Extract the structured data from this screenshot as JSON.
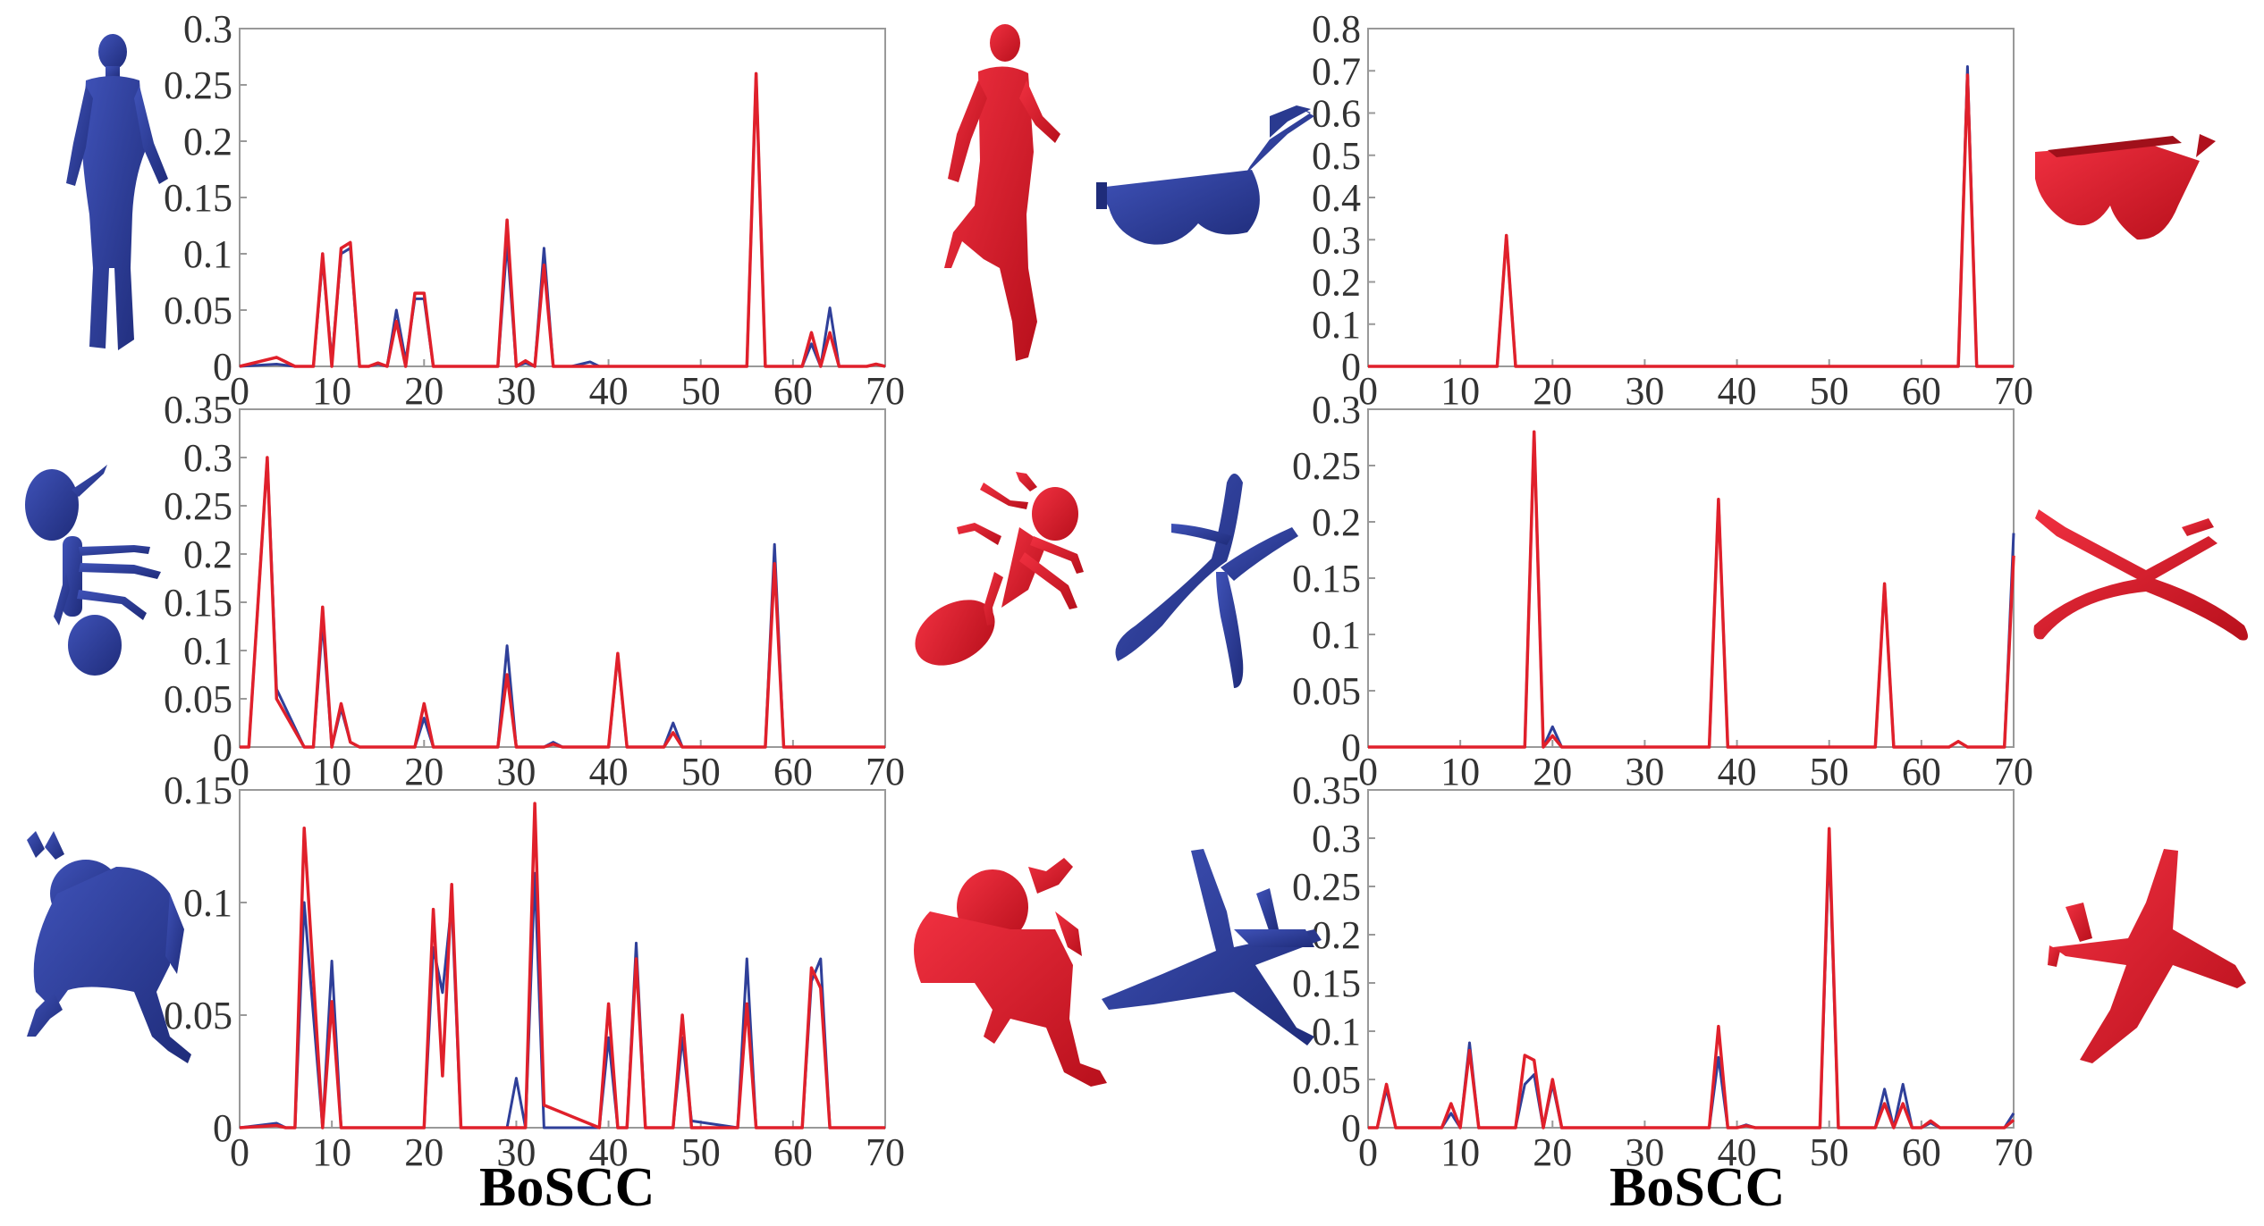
{
  "figure": {
    "captions": [
      "BoSCC",
      "BoSCC"
    ],
    "colors": {
      "shape_a": "#2f3f99",
      "shape_b": "#e0202b",
      "axis": "#999999"
    }
  },
  "shapes": [
    {
      "panel": 0,
      "a": "human-figure-blue-icon",
      "b": "human-figure-red-icon"
    },
    {
      "panel": 1,
      "a": "glasses-blue-icon",
      "b": "glasses-red-icon"
    },
    {
      "panel": 2,
      "a": "ant-blue-icon",
      "b": "ant-red-icon"
    },
    {
      "panel": 3,
      "a": "four-limb-shape-blue-icon",
      "b": "four-limb-shape-red-icon"
    },
    {
      "panel": 4,
      "a": "armadillo-blue-icon",
      "b": "armadillo-red-icon"
    },
    {
      "panel": 5,
      "a": "airplane-blue-icon",
      "b": "airplane-red-icon"
    }
  ],
  "chart_data": [
    {
      "type": "line",
      "xlim": [
        0,
        70
      ],
      "ylim": [
        0,
        0.3
      ],
      "xticks": [
        "0",
        "10",
        "20",
        "30",
        "40",
        "50",
        "60",
        "70"
      ],
      "yticks": [
        "0",
        "0.05",
        "0.1",
        "0.15",
        "0.2",
        "0.25",
        "0.3"
      ],
      "series": [
        {
          "color": "#2f3f99",
          "x": [
            0,
            4,
            6,
            8,
            9,
            10,
            11,
            12,
            13,
            14,
            15,
            16,
            17,
            18,
            19,
            20,
            21,
            22,
            28,
            29,
            30,
            31,
            32,
            33,
            34,
            35,
            36,
            38,
            39,
            40,
            41,
            55,
            56,
            57,
            58,
            61,
            62,
            63,
            64,
            65,
            66,
            68,
            69,
            70
          ],
          "y": [
            0,
            0.002,
            0,
            0,
            0.095,
            0.005,
            0.1,
            0.105,
            0,
            0,
            0.002,
            0,
            0.05,
            0.005,
            0.06,
            0.06,
            0,
            0,
            0,
            0.11,
            0,
            0.003,
            0,
            0.105,
            0,
            0,
            0,
            0.004,
            0,
            0,
            0,
            0,
            0.26,
            0,
            0,
            0,
            0.02,
            0,
            0.052,
            0,
            0,
            0,
            0.002,
            0
          ]
        },
        {
          "color": "#e0202b",
          "x": [
            0,
            4,
            6,
            8,
            9,
            10,
            11,
            12,
            13,
            14,
            15,
            16,
            17,
            18,
            19,
            20,
            21,
            22,
            28,
            29,
            30,
            31,
            32,
            33,
            34,
            35,
            36,
            38,
            39,
            40,
            41,
            55,
            56,
            57,
            58,
            61,
            62,
            63,
            64,
            65,
            66,
            68,
            69,
            70
          ],
          "y": [
            0,
            0.008,
            0,
            0,
            0.1,
            0,
            0.105,
            0.11,
            0,
            0,
            0.003,
            0,
            0.04,
            0,
            0.065,
            0.065,
            0,
            0,
            0,
            0.13,
            0,
            0.005,
            0,
            0.09,
            0,
            0,
            0,
            0,
            0,
            0,
            0,
            0,
            0.26,
            0,
            0,
            0,
            0.03,
            0,
            0.03,
            0,
            0,
            0,
            0.002,
            0
          ]
        }
      ]
    },
    {
      "type": "line",
      "xlim": [
        0,
        70
      ],
      "ylim": [
        0,
        0.8
      ],
      "xticks": [
        "0",
        "10",
        "20",
        "30",
        "40",
        "50",
        "60",
        "70"
      ],
      "yticks": [
        "0",
        "0.1",
        "0.2",
        "0.3",
        "0.4",
        "0.5",
        "0.6",
        "0.7",
        "0.8"
      ],
      "series": [
        {
          "color": "#2f3f99",
          "x": [
            0,
            14,
            15,
            16,
            64,
            65,
            66,
            70
          ],
          "y": [
            0,
            0,
            0.31,
            0,
            0,
            0.71,
            0,
            0
          ]
        },
        {
          "color": "#e0202b",
          "x": [
            0,
            14,
            15,
            16,
            64,
            65,
            66,
            70
          ],
          "y": [
            0,
            0,
            0.31,
            0,
            0,
            0.69,
            0,
            0
          ]
        }
      ]
    },
    {
      "type": "line",
      "xlim": [
        0,
        70
      ],
      "ylim": [
        0,
        0.35
      ],
      "xticks": [
        "0",
        "10",
        "20",
        "30",
        "40",
        "50",
        "60",
        "70"
      ],
      "yticks": [
        "0",
        "0.05",
        "0.1",
        "0.15",
        "0.2",
        "0.25",
        "0.3",
        "0.35"
      ],
      "series": [
        {
          "color": "#2f3f99",
          "x": [
            0,
            1,
            3,
            4,
            7,
            8,
            9,
            10,
            11,
            12,
            13,
            19,
            20,
            21,
            28,
            29,
            30,
            31,
            33,
            34,
            35,
            40,
            41,
            42,
            46,
            47,
            48,
            57,
            58,
            59,
            70
          ],
          "y": [
            0,
            0,
            0.3,
            0.06,
            0,
            0,
            0.13,
            0,
            0.04,
            0.005,
            0,
            0,
            0.03,
            0,
            0,
            0.105,
            0,
            0,
            0,
            0.005,
            0,
            0,
            0.095,
            0,
            0,
            0.025,
            0,
            0,
            0.21,
            0,
            0
          ]
        },
        {
          "color": "#e0202b",
          "x": [
            0,
            1,
            3,
            4,
            7,
            8,
            9,
            10,
            11,
            12,
            13,
            19,
            20,
            21,
            28,
            29,
            30,
            31,
            33,
            34,
            35,
            40,
            41,
            42,
            46,
            47,
            48,
            57,
            58,
            59,
            70
          ],
          "y": [
            0,
            0,
            0.3,
            0.05,
            0,
            0,
            0.145,
            0,
            0.045,
            0.005,
            0,
            0,
            0.045,
            0,
            0,
            0.075,
            0,
            0,
            0,
            0.003,
            0,
            0,
            0.097,
            0,
            0,
            0.015,
            0,
            0,
            0.19,
            0,
            0
          ]
        }
      ]
    },
    {
      "type": "line",
      "xlim": [
        0,
        70
      ],
      "ylim": [
        0,
        0.3
      ],
      "xticks": [
        "0",
        "10",
        "20",
        "30",
        "40",
        "50",
        "60",
        "70"
      ],
      "yticks": [
        "0",
        "0.05",
        "0.1",
        "0.15",
        "0.2",
        "0.25",
        "0.3"
      ],
      "series": [
        {
          "color": "#2f3f99",
          "x": [
            0,
            16,
            17,
            18,
            19,
            20,
            21,
            37,
            38,
            39,
            55,
            56,
            57,
            63,
            64,
            65,
            69,
            70
          ],
          "y": [
            0,
            0,
            0,
            0.28,
            0,
            0.018,
            0,
            0,
            0.22,
            0,
            0,
            0.145,
            0,
            0,
            0.005,
            0,
            0,
            0.19
          ]
        },
        {
          "color": "#e0202b",
          "x": [
            0,
            16,
            17,
            18,
            19,
            20,
            21,
            37,
            38,
            39,
            55,
            56,
            57,
            63,
            64,
            65,
            69,
            70
          ],
          "y": [
            0,
            0,
            0,
            0.28,
            0,
            0.01,
            0,
            0,
            0.22,
            0,
            0,
            0.145,
            0,
            0,
            0.005,
            0,
            0,
            0.17
          ]
        }
      ]
    },
    {
      "type": "line",
      "xlim": [
        0,
        70
      ],
      "ylim": [
        0,
        0.15
      ],
      "xticks": [
        "0",
        "10",
        "20",
        "30",
        "40",
        "50",
        "60",
        "70"
      ],
      "yticks": [
        "0",
        "0.05",
        "0.1",
        "0.15"
      ],
      "series": [
        {
          "color": "#2f3f99",
          "x": [
            0,
            4,
            5,
            6,
            7,
            9,
            10,
            11,
            20,
            21,
            22,
            23,
            24,
            29,
            30,
            31,
            32,
            33,
            39,
            40,
            41,
            42,
            43,
            44,
            47,
            48,
            49,
            54,
            55,
            56,
            61,
            62,
            63,
            64,
            70
          ],
          "y": [
            0,
            0.002,
            0,
            0,
            0.1,
            0,
            0.074,
            0,
            0,
            0.08,
            0.06,
            0.1,
            0,
            0,
            0.022,
            0,
            0.113,
            0,
            0,
            0.04,
            0,
            0,
            0.082,
            0,
            0,
            0.04,
            0.003,
            0,
            0.075,
            0,
            0,
            0.065,
            0.075,
            0,
            0
          ]
        },
        {
          "color": "#e0202b",
          "x": [
            0,
            4,
            5,
            6,
            7,
            9,
            10,
            11,
            20,
            21,
            22,
            23,
            24,
            29,
            30,
            31,
            32,
            33,
            39,
            40,
            41,
            42,
            43,
            44,
            47,
            48,
            49,
            54,
            55,
            56,
            61,
            62,
            63,
            64,
            70
          ],
          "y": [
            0,
            0.001,
            0,
            0,
            0.133,
            0,
            0.056,
            0,
            0,
            0.097,
            0.023,
            0.108,
            0,
            0,
            0,
            0,
            0.144,
            0.01,
            0,
            0.055,
            0,
            0,
            0.075,
            0,
            0,
            0.05,
            0,
            0,
            0.055,
            0,
            0,
            0.071,
            0.062,
            0,
            0
          ]
        }
      ]
    },
    {
      "type": "line",
      "xlim": [
        0,
        70
      ],
      "ylim": [
        0,
        0.35
      ],
      "xticks": [
        "0",
        "10",
        "20",
        "30",
        "40",
        "50",
        "60",
        "70"
      ],
      "yticks": [
        "0",
        "0.05",
        "0.1",
        "0.15",
        "0.2",
        "0.25",
        "0.3",
        "0.35"
      ],
      "series": [
        {
          "color": "#2f3f99",
          "x": [
            0,
            1,
            2,
            3,
            8,
            9,
            10,
            11,
            12,
            16,
            17,
            18,
            19,
            20,
            21,
            37,
            38,
            39,
            40,
            41,
            42,
            49,
            50,
            51,
            55,
            56,
            57,
            58,
            59,
            60,
            61,
            62,
            69,
            70
          ],
          "y": [
            0,
            0,
            0.04,
            0,
            0,
            0.015,
            0,
            0.088,
            0,
            0,
            0.045,
            0.055,
            0,
            0.045,
            0,
            0,
            0.073,
            0,
            0,
            0.003,
            0,
            0,
            0.295,
            0,
            0,
            0.04,
            0,
            0.045,
            0,
            0,
            0.005,
            0,
            0,
            0.015
          ]
        },
        {
          "color": "#e0202b",
          "x": [
            0,
            1,
            2,
            3,
            8,
            9,
            10,
            11,
            12,
            16,
            17,
            18,
            19,
            20,
            21,
            37,
            38,
            39,
            40,
            41,
            42,
            49,
            50,
            51,
            55,
            56,
            57,
            58,
            59,
            60,
            61,
            62,
            69,
            70
          ],
          "y": [
            0,
            0,
            0.045,
            0,
            0,
            0.025,
            0,
            0.08,
            0,
            0,
            0.075,
            0.07,
            0,
            0.05,
            0,
            0,
            0.105,
            0,
            0,
            0.002,
            0,
            0,
            0.31,
            0,
            0,
            0.025,
            0,
            0.025,
            0,
            0,
            0.007,
            0,
            0,
            0.008
          ]
        }
      ]
    }
  ]
}
